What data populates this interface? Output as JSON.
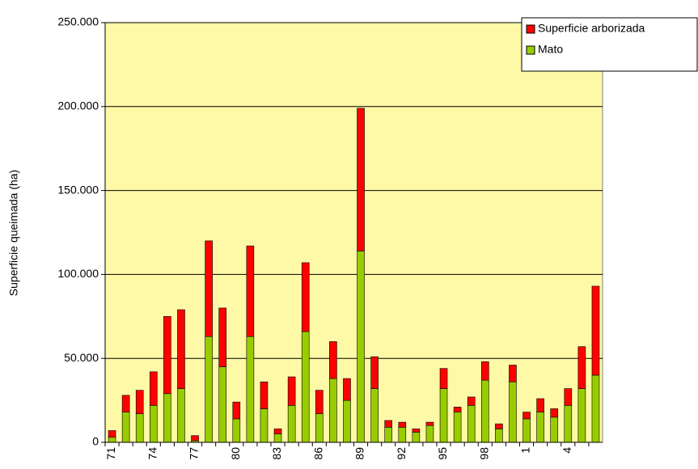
{
  "chart_data": {
    "type": "stacked_bar",
    "ylabel": "Superficie queimada (ha)",
    "categories": [
      "71",
      null,
      null,
      "74",
      null,
      null,
      "77",
      null,
      null,
      "80",
      null,
      null,
      "83",
      null,
      null,
      "86",
      null,
      null,
      "89",
      null,
      null,
      "92",
      null,
      null,
      "95",
      null,
      null,
      "98",
      null,
      null,
      "1",
      null,
      null,
      "4",
      null,
      null
    ],
    "series": [
      {
        "name": "Mato",
        "color": "#99cc00",
        "values": [
          3000,
          18000,
          17000,
          22000,
          29000,
          32000,
          1000,
          63000,
          45000,
          14000,
          63000,
          20000,
          5000,
          22000,
          66000,
          17000,
          38000,
          25000,
          114000,
          32000,
          9000,
          9000,
          6000,
          10000,
          32000,
          18000,
          22000,
          37000,
          8000,
          36000,
          14000,
          18000,
          15000,
          22000,
          32000,
          40000
        ]
      },
      {
        "name": "Superficie arborizada",
        "color": "#ff0000",
        "values": [
          4000,
          10000,
          14000,
          20000,
          46000,
          47000,
          3000,
          57000,
          35000,
          10000,
          54000,
          16000,
          3000,
          17000,
          41000,
          14000,
          22000,
          13000,
          85000,
          19000,
          4000,
          3000,
          2000,
          2000,
          12000,
          3000,
          5000,
          11000,
          3000,
          10000,
          4000,
          8000,
          5000,
          10000,
          25000,
          53000
        ]
      }
    ],
    "ylim": [
      0,
      250000
    ],
    "yticks": [
      0,
      {
        "value": 50000,
        "label": "50.000"
      },
      {
        "value": 100000,
        "label": "100.000"
      },
      {
        "value": 150000,
        "label": "150.000"
      },
      {
        "value": 200000,
        "label": "200.000"
      },
      {
        "value": 250000,
        "label": "250.000"
      }
    ],
    "grid": true,
    "legend": "top-right",
    "background": "#fdf9a6"
  }
}
